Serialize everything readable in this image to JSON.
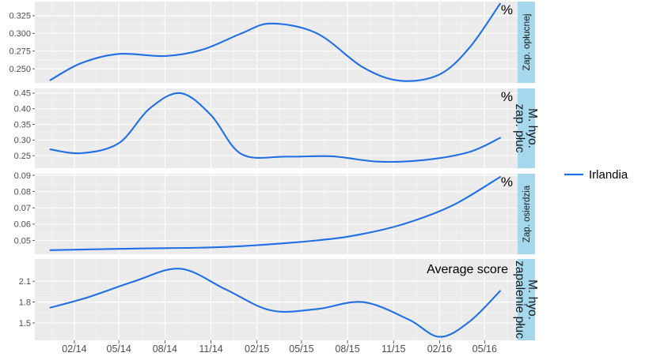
{
  "chart_data": {
    "type": "line",
    "x_ticks": [
      "02/14",
      "05/14",
      "08/14",
      "11/14",
      "02/15",
      "05/15",
      "08/15",
      "11/15",
      "02/16",
      "05/16"
    ],
    "legend": {
      "position": "right",
      "entries": [
        {
          "name": "Irlandia",
          "color": "#1f6fe5"
        }
      ]
    },
    "grid": true,
    "panels": [
      {
        "strip": "Zap. opłucnej",
        "annotation": "%",
        "y_ticks": [
          "0.250",
          "0.275",
          "0.300",
          "0.325"
        ],
        "ylim": [
          0.23,
          0.345
        ],
        "series": [
          {
            "name": "Irlandia",
            "x": [
              "2013-12-15",
              "2014-02-15",
              "2014-05-01",
              "2014-08-01",
              "2014-10-15",
              "2015-01-01",
              "2015-03-01",
              "2015-06-01",
              "2015-09-01",
              "2015-11-15",
              "2016-02-01",
              "2016-04-01",
              "2016-06-01"
            ],
            "y": [
              0.234,
              0.258,
              0.271,
              0.268,
              0.277,
              0.3,
              0.314,
              0.3,
              0.252,
              0.233,
              0.242,
              0.28,
              0.342
            ]
          }
        ]
      },
      {
        "strip": "M. hyo. zap. płuc",
        "annotation": "%",
        "y_ticks": [
          "0.25",
          "0.30",
          "0.35",
          "0.40",
          "0.45"
        ],
        "ylim": [
          0.21,
          0.465
        ],
        "series": [
          {
            "name": "Irlandia",
            "x": [
              "2013-12-15",
              "2014-02-15",
              "2014-05-01",
              "2014-07-01",
              "2014-09-01",
              "2014-11-01",
              "2015-01-01",
              "2015-04-01",
              "2015-07-01",
              "2015-10-01",
              "2016-01-01",
              "2016-04-01",
              "2016-06-01"
            ],
            "y": [
              0.27,
              0.258,
              0.29,
              0.4,
              0.45,
              0.38,
              0.255,
              0.247,
              0.248,
              0.231,
              0.236,
              0.262,
              0.307
            ]
          }
        ]
      },
      {
        "strip": "Zap. osierdzia",
        "annotation": "%",
        "y_ticks": [
          "0.05",
          "0.06",
          "0.07",
          "0.08",
          "0.09"
        ],
        "ylim": [
          0.0415,
          0.091
        ],
        "series": [
          {
            "name": "Irlandia",
            "x": [
              "2013-12-15",
              "2014-06-01",
              "2014-12-01",
              "2015-06-01",
              "2015-09-01",
              "2015-12-01",
              "2016-03-01",
              "2016-06-01"
            ],
            "y": [
              0.044,
              0.045,
              0.046,
              0.05,
              0.054,
              0.061,
              0.072,
              0.089
            ]
          }
        ]
      },
      {
        "strip": "M. hyo. zapalenie płuc",
        "annotation": "Average score",
        "y_ticks": [
          "1.5",
          "1.8",
          "2.1"
        ],
        "ylim": [
          1.25,
          2.42
        ],
        "series": [
          {
            "name": "Irlandia",
            "x": [
              "2013-12-15",
              "2014-03-01",
              "2014-06-01",
              "2014-09-01",
              "2014-12-01",
              "2015-03-01",
              "2015-06-01",
              "2015-09-01",
              "2015-12-01",
              "2016-02-01",
              "2016-04-01",
              "2016-06-01"
            ],
            "y": [
              1.72,
              1.87,
              2.1,
              2.28,
              1.98,
              1.68,
              1.7,
              1.8,
              1.55,
              1.3,
              1.52,
              1.96
            ]
          }
        ]
      }
    ]
  }
}
